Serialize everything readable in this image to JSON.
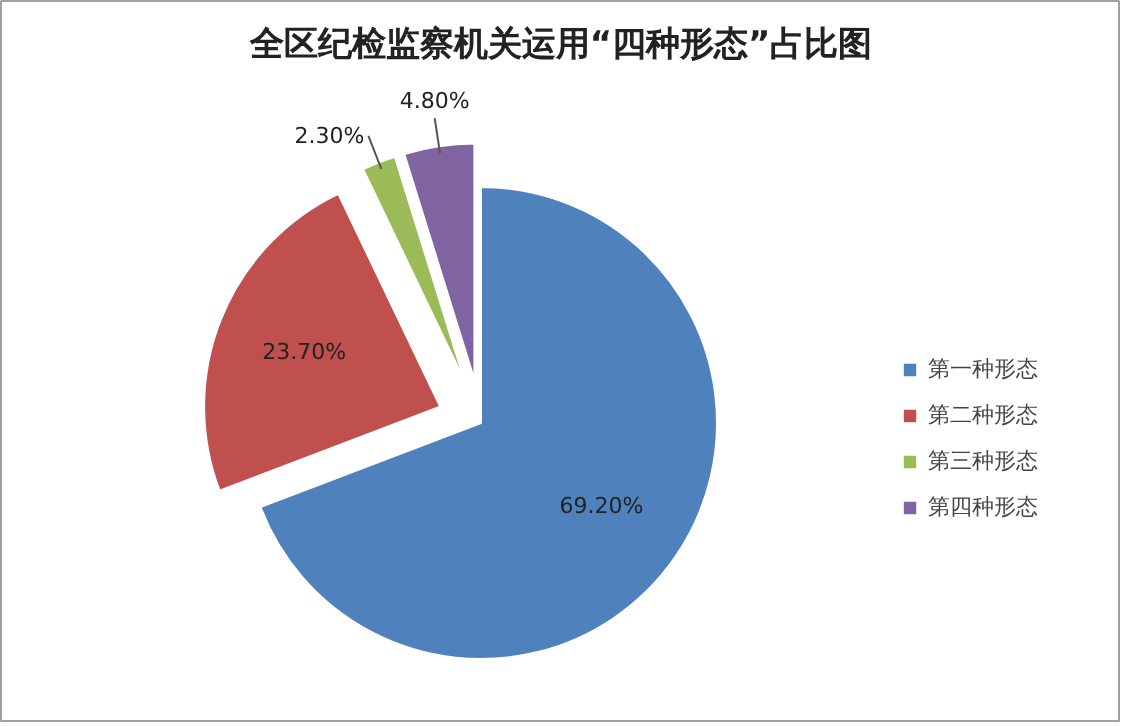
{
  "chart_data": {
    "type": "pie",
    "title": "全区纪检监察机关运用“四种形态”占比图",
    "categories": [
      "第一种形态",
      "第二种形态",
      "第三种形态",
      "第四种形态"
    ],
    "values": [
      69.2,
      23.7,
      2.3,
      4.8
    ],
    "colors": [
      "#4f81bd",
      "#c0504d",
      "#9bbb59",
      "#8064a2"
    ],
    "value_labels": [
      "69.20%",
      "23.70%",
      "2.30%",
      "4.80%"
    ],
    "legend": "right"
  }
}
